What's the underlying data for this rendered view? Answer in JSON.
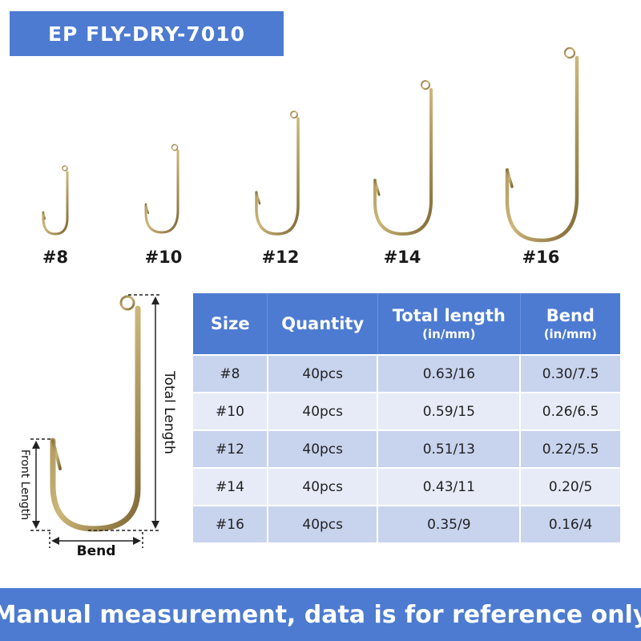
{
  "title": "EP FLY-DRY-7010",
  "hook_sizes": [
    "#8",
    "#10",
    "#12",
    "#14",
    "#16"
  ],
  "diagram": {
    "total_length_label": "Total Length",
    "front_length_label": "Front Length",
    "bend_label": "Bend"
  },
  "table": {
    "headers": {
      "size": "Size",
      "quantity": "Quantity",
      "total_length": "Total length",
      "total_length_unit": "(in/mm)",
      "bend": "Bend",
      "bend_unit": "(in/mm)"
    },
    "rows": [
      {
        "size": "#8",
        "quantity": "40pcs",
        "total_length": "0.63/16",
        "bend": "0.30/7.5"
      },
      {
        "size": "#10",
        "quantity": "40pcs",
        "total_length": "0.59/15",
        "bend": "0.26/6.5"
      },
      {
        "size": "#12",
        "quantity": "40pcs",
        "total_length": "0.51/13",
        "bend": "0.22/5.5"
      },
      {
        "size": "#14",
        "quantity": "40pcs",
        "total_length": "0.43/11",
        "bend": "0.20/5"
      },
      {
        "size": "#16",
        "quantity": "40pcs",
        "total_length": "0.35/9",
        "bend": "0.16/4"
      }
    ]
  },
  "footer": "Manual measurement, data is for reference only",
  "colors": {
    "accent": "#4d7bd1",
    "row_dark": "#c8d3ee",
    "row_light": "#e6ebf7",
    "hook_gold": "#b39a5a"
  }
}
